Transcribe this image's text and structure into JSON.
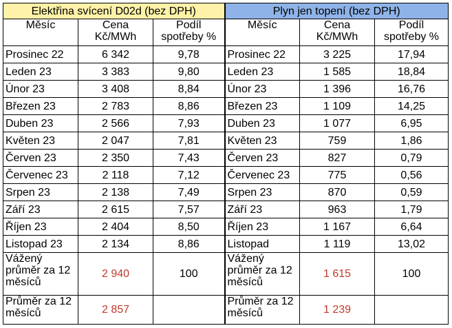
{
  "electricity": {
    "title": "Elektřina svícení D02d (bez DPH)"
  },
  "gas": {
    "title": "Plyn jen topení (bez DPH)"
  },
  "headers": {
    "month": "Měsíc",
    "price": "Cena Kč/MWh",
    "share": "Podíl spotřeby %"
  },
  "rows": [
    {
      "el_month": "Prosinec 22",
      "el_price": "6 342",
      "el_share": "9,78",
      "gas_month": "Prosinec 22",
      "gas_price": "3 225",
      "gas_share": "17,94"
    },
    {
      "el_month": "Leden 23",
      "el_price": "3 383",
      "el_share": "9,80",
      "gas_month": "Leden 23",
      "gas_price": "1 585",
      "gas_share": "18,84"
    },
    {
      "el_month": "Únor 23",
      "el_price": "3 408",
      "el_share": "8,84",
      "gas_month": "Únor 23",
      "gas_price": "1 396",
      "gas_share": "16,76"
    },
    {
      "el_month": "Březen 23",
      "el_price": "2 783",
      "el_share": "8,86",
      "gas_month": "Březen 23",
      "gas_price": "1 109",
      "gas_share": "14,25"
    },
    {
      "el_month": "Duben 23",
      "el_price": "2 566",
      "el_share": "7,93",
      "gas_month": "Duben 23",
      "gas_price": "1 077",
      "gas_share": "6,95"
    },
    {
      "el_month": "Květen 23",
      "el_price": "2 047",
      "el_share": "7,81",
      "gas_month": "Květen 23",
      "gas_price": "759",
      "gas_share": "1,86"
    },
    {
      "el_month": "Červen 23",
      "el_price": "2 350",
      "el_share": "7,43",
      "gas_month": "Červen 23",
      "gas_price": "827",
      "gas_share": "0,79"
    },
    {
      "el_month": "Červenec 23",
      "el_price": "2 118",
      "el_share": "7,12",
      "gas_month": "Červenec 23",
      "gas_price": "775",
      "gas_share": "0,56"
    },
    {
      "el_month": "Srpen 23",
      "el_price": "2 138",
      "el_share": "7,49",
      "gas_month": "Srpen 23",
      "gas_price": "870",
      "gas_share": "0,59"
    },
    {
      "el_month": "Září 23",
      "el_price": "2 615",
      "el_share": "7,57",
      "gas_month": "Září 23",
      "gas_price": "963",
      "gas_share": "1,79"
    },
    {
      "el_month": "Říjen 23",
      "el_price": "2 404",
      "el_share": "8,50",
      "gas_month": "Říjen 23",
      "gas_price": "1 167",
      "gas_share": "6,64"
    },
    {
      "el_month": "Listopad 23",
      "el_price": "2 134",
      "el_share": "8,86",
      "gas_month": "Listopad",
      "gas_price": "1 119",
      "gas_share": "13,02"
    }
  ],
  "weighted": {
    "label": "Vážený průměr za 12 měsíců",
    "el_price": "2 940",
    "el_share": "100",
    "gas_price": "1 615",
    "gas_share": "100"
  },
  "average": {
    "label": "Průměr za 12 měsíců",
    "el_price": "2 857",
    "gas_price": "1 239"
  },
  "colors": {
    "electricity_header": "#fff2a8",
    "gas_header": "#8eb3e8",
    "highlight_value": "#c0392b"
  }
}
